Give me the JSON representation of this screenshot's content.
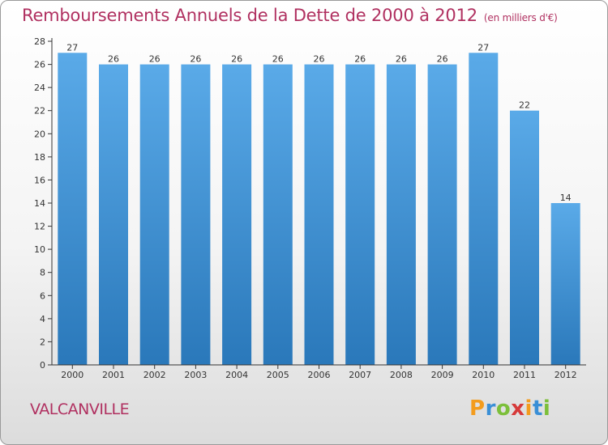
{
  "chart_data": {
    "type": "bar",
    "title": "Remboursements Annuels de la Dette de 2000 à 2012",
    "unit": "(en milliers d'€)",
    "categories": [
      "2000",
      "2001",
      "2002",
      "2003",
      "2004",
      "2005",
      "2006",
      "2007",
      "2008",
      "2009",
      "2010",
      "2011",
      "2012"
    ],
    "values": [
      27,
      26,
      26,
      26,
      26,
      26,
      26,
      26,
      26,
      26,
      27,
      22,
      14
    ],
    "yticks": [
      "0",
      "2",
      "4",
      "6",
      "8",
      "10",
      "12",
      "14",
      "16",
      "18",
      "20",
      "22",
      "24",
      "26",
      "28"
    ],
    "ylim": [
      0,
      28
    ],
    "grid": false,
    "bar_color_top": "#5aaae8",
    "bar_color_bottom": "#2a78ba"
  },
  "city": "VALCANVILLE",
  "logo": {
    "letters": [
      "P",
      "r",
      "o",
      "x",
      "i",
      "t",
      "i"
    ],
    "colors": [
      "#f39c1e",
      "#3a8fd6",
      "#7cbf3a",
      "#d63a3a",
      "#f39c1e",
      "#3a8fd6",
      "#7cbf3a"
    ]
  }
}
